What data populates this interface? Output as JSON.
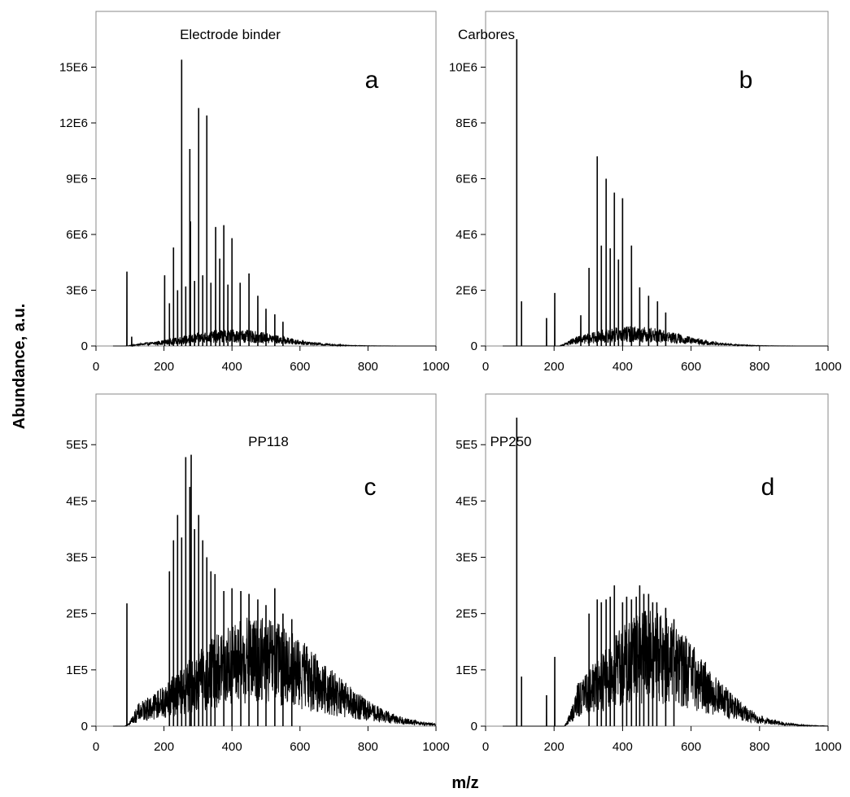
{
  "figure": {
    "ylabel": "Abundance, a.u.",
    "xlabel": "m/z"
  },
  "chart_data": [
    {
      "type": "line",
      "title": "Electrode binder",
      "panel_label": "a",
      "xlim": [
        0,
        1000
      ],
      "ylim": [
        0,
        18000000
      ],
      "xticks": [
        0,
        200,
        400,
        600,
        800,
        1000
      ],
      "xtick_labels": [
        "0",
        "200",
        "400",
        "600",
        "800",
        "1000"
      ],
      "yticks": [
        0,
        3000000,
        6000000,
        9000000,
        12000000,
        15000000
      ],
      "ytick_labels": [
        "0",
        "3E6",
        "6E6",
        "9E6",
        "12E6",
        "15E6"
      ],
      "onset": 125,
      "spread": 140,
      "envelope_center": 400,
      "envelope_peak": 700000,
      "peaks": [
        [
          91,
          4000000
        ],
        [
          105,
          500000
        ],
        [
          202,
          3800000
        ],
        [
          216,
          2300000
        ],
        [
          228,
          5300000
        ],
        [
          240,
          3000000
        ],
        [
          252,
          15400000
        ],
        [
          264,
          3200000
        ],
        [
          276,
          10600000
        ],
        [
          278,
          6700000
        ],
        [
          290,
          3500000
        ],
        [
          302,
          12800000
        ],
        [
          314,
          3800000
        ],
        [
          326,
          12400000
        ],
        [
          338,
          3400000
        ],
        [
          352,
          6400000
        ],
        [
          364,
          4700000
        ],
        [
          376,
          6500000
        ],
        [
          388,
          3300000
        ],
        [
          400,
          5800000
        ],
        [
          424,
          3400000
        ],
        [
          450,
          3900000
        ],
        [
          476,
          2700000
        ],
        [
          500,
          2000000
        ],
        [
          526,
          1700000
        ],
        [
          550,
          1300000
        ]
      ],
      "grid": false,
      "legend": "none"
    },
    {
      "type": "line",
      "title": "Carbores",
      "panel_label": "b",
      "xlim": [
        0,
        1000
      ],
      "ylim": [
        0,
        12000000
      ],
      "xticks": [
        0,
        200,
        400,
        600,
        800,
        1000
      ],
      "xtick_labels": [
        "0",
        "200",
        "400",
        "600",
        "800",
        "1000"
      ],
      "yticks": [
        0,
        2000000,
        4000000,
        6000000,
        8000000,
        10000000
      ],
      "ytick_labels": [
        "0",
        "2E6",
        "4E6",
        "6E6",
        "8E6",
        "10E6"
      ],
      "onset": 255,
      "spread": 135,
      "envelope_center": 430,
      "envelope_peak": 550000,
      "peaks": [
        [
          91,
          11000000
        ],
        [
          105,
          1600000
        ],
        [
          178,
          1000000
        ],
        [
          202,
          1900000
        ],
        [
          278,
          1100000
        ],
        [
          302,
          2800000
        ],
        [
          326,
          6800000
        ],
        [
          338,
          3600000
        ],
        [
          352,
          6000000
        ],
        [
          364,
          3500000
        ],
        [
          376,
          5500000
        ],
        [
          388,
          3100000
        ],
        [
          400,
          5300000
        ],
        [
          426,
          3600000
        ],
        [
          450,
          2100000
        ],
        [
          476,
          1800000
        ],
        [
          502,
          1600000
        ],
        [
          526,
          1200000
        ]
      ],
      "grid": false,
      "legend": "none"
    },
    {
      "type": "line",
      "title": "PP118",
      "panel_label": "c",
      "xlim": [
        0,
        1000
      ],
      "ylim": [
        0,
        590000
      ],
      "xticks": [
        0,
        200,
        400,
        600,
        800,
        1000
      ],
      "xtick_labels": [
        "0",
        "200",
        "400",
        "600",
        "800",
        "1000"
      ],
      "yticks": [
        0,
        100000,
        200000,
        300000,
        400000,
        500000
      ],
      "ytick_labels": [
        "0",
        "1E5",
        "2E5",
        "3E5",
        "4E5",
        "5E5"
      ],
      "onset": 125,
      "spread": 195,
      "envelope_center": 470,
      "envelope_peak": 150000,
      "peaks": [
        [
          91,
          218000
        ],
        [
          216,
          275000
        ],
        [
          228,
          330000
        ],
        [
          240,
          375000
        ],
        [
          252,
          335000
        ],
        [
          264,
          478000
        ],
        [
          276,
          425000
        ],
        [
          280,
          482000
        ],
        [
          290,
          350000
        ],
        [
          302,
          375000
        ],
        [
          314,
          330000
        ],
        [
          326,
          300000
        ],
        [
          338,
          275000
        ],
        [
          350,
          270000
        ],
        [
          376,
          240000
        ],
        [
          400,
          245000
        ],
        [
          426,
          240000
        ],
        [
          450,
          235000
        ],
        [
          476,
          225000
        ],
        [
          500,
          215000
        ],
        [
          526,
          245000
        ],
        [
          550,
          200000
        ],
        [
          576,
          190000
        ]
      ],
      "grid": false,
      "legend": "none"
    },
    {
      "type": "line",
      "title": "PP250",
      "panel_label": "d",
      "xlim": [
        0,
        1000
      ],
      "ylim": [
        0,
        590000
      ],
      "xticks": [
        0,
        200,
        400,
        600,
        800,
        1000
      ],
      "xtick_labels": [
        "0",
        "200",
        "400",
        "600",
        "800",
        "1000"
      ],
      "yticks": [
        0,
        100000,
        200000,
        300000,
        400000,
        500000
      ],
      "ytick_labels": [
        "0",
        "1E5",
        "2E5",
        "3E5",
        "4E5",
        "5E5"
      ],
      "onset": 270,
      "spread": 150,
      "envelope_center": 480,
      "envelope_peak": 160000,
      "peaks": [
        [
          91,
          548000
        ],
        [
          105,
          88000
        ],
        [
          178,
          55000
        ],
        [
          202,
          123000
        ],
        [
          302,
          200000
        ],
        [
          326,
          225000
        ],
        [
          338,
          220000
        ],
        [
          352,
          225000
        ],
        [
          364,
          230000
        ],
        [
          376,
          250000
        ],
        [
          400,
          220000
        ],
        [
          412,
          230000
        ],
        [
          426,
          225000
        ],
        [
          440,
          230000
        ],
        [
          450,
          250000
        ],
        [
          462,
          235000
        ],
        [
          476,
          235000
        ],
        [
          488,
          220000
        ],
        [
          500,
          220000
        ],
        [
          526,
          210000
        ],
        [
          550,
          190000
        ]
      ],
      "grid": false,
      "legend": "none"
    }
  ]
}
